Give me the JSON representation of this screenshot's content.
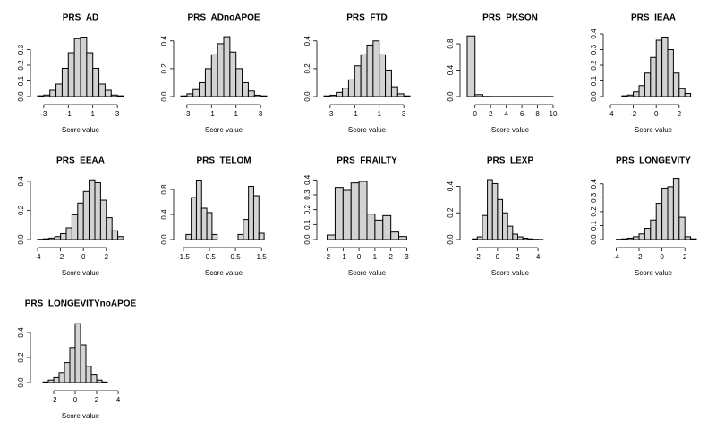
{
  "chart_data": [
    {
      "type": "histogram",
      "title": "PRS_AD",
      "x_label": "Score value",
      "color": "#d3d3d3",
      "bins": [
        -3.5,
        -3,
        -2.5,
        -2,
        -1.5,
        -1,
        -0.5,
        0,
        0.5,
        1,
        1.5,
        2,
        2.5,
        3,
        3.5
      ],
      "values": [
        0.005,
        0.01,
        0.04,
        0.08,
        0.18,
        0.28,
        0.37,
        0.38,
        0.28,
        0.18,
        0.08,
        0.04,
        0.01,
        0.005
      ],
      "xlim": [
        -3.5,
        3.5
      ],
      "xticks": [
        -3,
        -1,
        1,
        3
      ],
      "ylim": [
        0,
        0.4
      ],
      "yticks": [
        {
          "value": 0,
          "label": "0.0"
        },
        {
          "value": 0.1,
          "label": "0.1"
        },
        {
          "value": 0.2,
          "label": "0.2"
        },
        {
          "value": 0.3,
          "label": "0.3"
        }
      ]
    },
    {
      "type": "histogram",
      "title": "PRS_ADnoAPOE",
      "x_label": "Score value",
      "color": "#d3d3d3",
      "bins": [
        -3.5,
        -3,
        -2.5,
        -2,
        -1.5,
        -1,
        -0.5,
        0,
        0.5,
        1,
        1.5,
        2,
        2.5,
        3,
        3.5
      ],
      "values": [
        0.005,
        0.02,
        0.05,
        0.1,
        0.2,
        0.3,
        0.38,
        0.43,
        0.32,
        0.2,
        0.1,
        0.04,
        0.01,
        0.005
      ],
      "xlim": [
        -3.5,
        3.5
      ],
      "xticks": [
        -3,
        -1,
        1,
        3
      ],
      "ylim": [
        0,
        0.45
      ],
      "yticks": [
        {
          "value": 0,
          "label": "0.0"
        },
        {
          "value": 0.2,
          "label": "0.2"
        },
        {
          "value": 0.4,
          "label": "0.4"
        }
      ]
    },
    {
      "type": "histogram",
      "title": "PRS_FTD",
      "x_label": "Score value",
      "color": "#d3d3d3",
      "bins": [
        -3.5,
        -3,
        -2.5,
        -2,
        -1.5,
        -1,
        -0.5,
        0,
        0.5,
        1,
        1.5,
        2,
        2.5,
        3,
        3.5
      ],
      "values": [
        0.005,
        0.01,
        0.03,
        0.06,
        0.12,
        0.22,
        0.3,
        0.37,
        0.4,
        0.3,
        0.19,
        0.07,
        0.02,
        0.005
      ],
      "xlim": [
        -3.5,
        3.5
      ],
      "xticks": [
        -3,
        -1,
        1,
        3
      ],
      "ylim": [
        0,
        0.45
      ],
      "yticks": [
        {
          "value": 0,
          "label": "0.0"
        },
        {
          "value": 0.2,
          "label": "0.2"
        },
        {
          "value": 0.4,
          "label": "0.4"
        }
      ]
    },
    {
      "type": "histogram",
      "title": "PRS_PKSON",
      "x_label": "Score value",
      "color": "#d3d3d3",
      "bins": [
        -1,
        0,
        1,
        2,
        3,
        4,
        5,
        6,
        7,
        8,
        9,
        10
      ],
      "values": [
        0.92,
        0.03,
        0.003,
        0.002,
        0.002,
        0.002,
        0.002,
        0.002,
        0.002,
        0.002,
        0.002
      ],
      "xlim": [
        -1,
        10
      ],
      "xticks": [
        0,
        2,
        4,
        6,
        8,
        10
      ],
      "ylim": [
        0,
        0.95
      ],
      "yticks": [
        {
          "value": 0,
          "label": "0.0"
        },
        {
          "value": 0.4,
          "label": "0.4"
        },
        {
          "value": 0.8,
          "label": "0.8"
        }
      ]
    },
    {
      "type": "histogram",
      "title": "PRS_IEAA",
      "x_label": "Score value",
      "color": "#d3d3d3",
      "bins": [
        -3,
        -2.5,
        -2,
        -1.5,
        -1,
        -0.5,
        0,
        0.5,
        1,
        1.5,
        2,
        2.5,
        3
      ],
      "values": [
        0.005,
        0.01,
        0.03,
        0.07,
        0.15,
        0.25,
        0.36,
        0.38,
        0.3,
        0.15,
        0.05,
        0.02
      ],
      "xlim": [
        -4,
        3.5
      ],
      "xticks": [
        -4,
        -2,
        0,
        2
      ],
      "ylim": [
        0,
        0.4
      ],
      "yticks": [
        {
          "value": 0,
          "label": "0.0"
        },
        {
          "value": 0.1,
          "label": "0.1"
        },
        {
          "value": 0.2,
          "label": "0.2"
        },
        {
          "value": 0.3,
          "label": "0.3"
        },
        {
          "value": 0.4,
          "label": "0.4"
        }
      ]
    },
    {
      "type": "histogram",
      "title": "PRS_EEAA",
      "x_label": "Score value",
      "color": "#d3d3d3",
      "bins": [
        -4,
        -3.5,
        -3,
        -2.5,
        -2,
        -1.5,
        -1,
        -0.5,
        0,
        0.5,
        1,
        1.5,
        2,
        2.5,
        3,
        3.5
      ],
      "values": [
        0.002,
        0.005,
        0.01,
        0.02,
        0.04,
        0.08,
        0.17,
        0.25,
        0.33,
        0.41,
        0.39,
        0.27,
        0.15,
        0.06,
        0.02
      ],
      "xlim": [
        -4,
        3.5
      ],
      "xticks": [
        -4,
        -2,
        0,
        2
      ],
      "ylim": [
        0,
        0.43
      ],
      "yticks": [
        {
          "value": 0,
          "label": "0.0"
        },
        {
          "value": 0.2,
          "label": "0.2"
        },
        {
          "value": 0.4,
          "label": "0.4"
        }
      ]
    },
    {
      "type": "histogram",
      "title": "PRS_TELOM",
      "x_label": "Score value",
      "color": "#d3d3d3",
      "bins": [
        -1.4,
        -1.2,
        -1,
        -0.8,
        -0.6,
        -0.4,
        -0.2,
        0,
        0.2,
        0.4,
        0.6,
        0.8,
        1,
        1.2,
        1.4,
        1.6
      ],
      "values": [
        0.08,
        0.67,
        0.95,
        0.5,
        0.43,
        0.08,
        0,
        0,
        0,
        0,
        0.08,
        0.32,
        0.85,
        0.7,
        0.1
      ],
      "xlim": [
        -1.6,
        1.7
      ],
      "xticks": [
        -1.5,
        -0.5,
        0.5,
        1.5
      ],
      "ylim": [
        0,
        1
      ],
      "yticks": [
        {
          "value": 0,
          "label": "0.0"
        },
        {
          "value": 0.4,
          "label": "0.4"
        },
        {
          "value": 0.8,
          "label": "0.8"
        }
      ]
    },
    {
      "type": "histogram",
      "title": "PRS_FRAILTY",
      "x_label": "Score value",
      "color": "#d3d3d3",
      "bins": [
        -2,
        -1.5,
        -1,
        -0.5,
        0,
        0.5,
        1,
        1.5,
        2,
        2.5,
        3
      ],
      "values": [
        0.03,
        0.35,
        0.33,
        0.38,
        0.39,
        0.17,
        0.13,
        0.16,
        0.05,
        0.02
      ],
      "xlim": [
        -2.2,
        3.2
      ],
      "xticks": [
        -2,
        -1,
        0,
        1,
        2,
        3
      ],
      "ylim": [
        0,
        0.42
      ],
      "yticks": [
        {
          "value": 0,
          "label": "0.0"
        },
        {
          "value": 0.1,
          "label": "0.1"
        },
        {
          "value": 0.2,
          "label": "0.2"
        },
        {
          "value": 0.3,
          "label": "0.3"
        },
        {
          "value": 0.4,
          "label": "0.4"
        }
      ]
    },
    {
      "type": "histogram",
      "title": "PRS_LEXP",
      "x_label": "Score value",
      "color": "#d3d3d3",
      "bins": [
        -2.5,
        -2,
        -1.5,
        -1,
        -0.5,
        0,
        0.5,
        1,
        1.5,
        2,
        2.5,
        3,
        3.5,
        4,
        4.5
      ],
      "values": [
        0.005,
        0.02,
        0.18,
        0.45,
        0.42,
        0.3,
        0.2,
        0.1,
        0.04,
        0.02,
        0.01,
        0.005,
        0.002,
        0.001
      ],
      "xlim": [
        -3,
        5.5
      ],
      "xticks": [
        -2,
        0,
        2,
        4
      ],
      "ylim": [
        0,
        0.47
      ],
      "yticks": [
        {
          "value": 0,
          "label": "0.0"
        },
        {
          "value": 0.2,
          "label": "0.2"
        },
        {
          "value": 0.4,
          "label": "0.4"
        }
      ]
    },
    {
      "type": "histogram",
      "title": "PRS_LONGEVITY",
      "x_label": "Score value",
      "color": "#d3d3d3",
      "bins": [
        -4,
        -3.5,
        -3,
        -2.5,
        -2,
        -1.5,
        -1,
        -0.5,
        0,
        0.5,
        1,
        1.5,
        2,
        2.5,
        3
      ],
      "values": [
        0.002,
        0.005,
        0.01,
        0.02,
        0.04,
        0.08,
        0.14,
        0.26,
        0.37,
        0.38,
        0.44,
        0.16,
        0.02,
        0.005
      ],
      "xlim": [
        -4.5,
        3
      ],
      "xticks": [
        -4,
        -2,
        0,
        2
      ],
      "ylim": [
        0,
        0.45
      ],
      "yticks": [
        {
          "value": 0,
          "label": "0.0"
        },
        {
          "value": 0.1,
          "label": "0.1"
        },
        {
          "value": 0.2,
          "label": "0.2"
        },
        {
          "value": 0.3,
          "label": "0.3"
        },
        {
          "value": 0.4,
          "label": "0.4"
        }
      ]
    },
    {
      "type": "histogram",
      "title": "PRS_LONGEVITYnoAPOE",
      "x_label": "Score value",
      "color": "#d3d3d3",
      "bins": [
        -3,
        -2.5,
        -2,
        -1.5,
        -1,
        -0.5,
        0,
        0.5,
        1,
        1.5,
        2,
        2.5,
        3
      ],
      "values": [
        0.005,
        0.02,
        0.04,
        0.08,
        0.16,
        0.28,
        0.47,
        0.3,
        0.13,
        0.06,
        0.02,
        0.005
      ],
      "xlim": [
        -3.5,
        4.5
      ],
      "xticks": [
        -2,
        0,
        2,
        4
      ],
      "ylim": [
        0,
        0.5
      ],
      "yticks": [
        {
          "value": 0,
          "label": "0.0"
        },
        {
          "value": 0.2,
          "label": "0.2"
        },
        {
          "value": 0.4,
          "label": "0.4"
        }
      ]
    }
  ]
}
